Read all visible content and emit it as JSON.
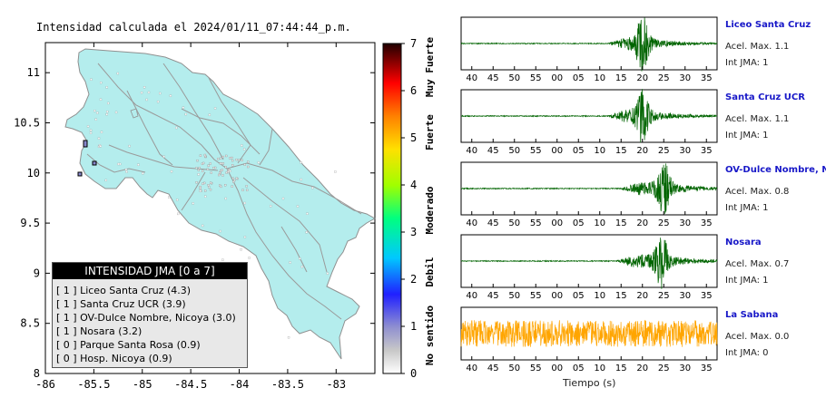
{
  "map": {
    "title": "Intensidad calculada el 2024/01/11_07:44:44_p.m.",
    "x_ticks": [
      "-86",
      "-85.5",
      "-85",
      "-84.5",
      "-84",
      "-83.5",
      "-83"
    ],
    "y_ticks": [
      "11",
      "10.5",
      "10",
      "9.5",
      "9",
      "8.5",
      "8"
    ],
    "xlim": [
      -86,
      -82.6
    ],
    "ylim": [
      8,
      11.3
    ],
    "land_color": "#b4eded"
  },
  "colorbar": {
    "ticks": [
      "0",
      "1",
      "2",
      "3",
      "4",
      "5",
      "6",
      "7"
    ],
    "category_labels": [
      "No sentido",
      "Debil",
      "Moderado",
      "Fuerte",
      "Muy Fuerte"
    ]
  },
  "legend": {
    "title": "INTENSIDAD JMA [0 a 7]",
    "items": [
      {
        "jma": "[ 1 ]",
        "label": "Liceo Santa Cruz (4.3)"
      },
      {
        "jma": "[ 1 ]",
        "label": "Santa Cruz UCR (3.9)"
      },
      {
        "jma": "[ 1 ]",
        "label": "OV-Dulce Nombre, Nicoya (3.0)"
      },
      {
        "jma": "[ 1 ]",
        "label": "Nosara (3.2)"
      },
      {
        "jma": "[ 0 ]",
        "label": "Parque Santa Rosa (0.9)"
      },
      {
        "jma": "[ 0 ]",
        "label": "Hosp. Nicoya (0.9)"
      }
    ]
  },
  "chart_data": {
    "type": "line",
    "xlabel": "Tiempo (s)",
    "x_tick_labels": [
      "40",
      "45",
      "50",
      "55",
      "00",
      "05",
      "10",
      "15",
      "20",
      "25",
      "30",
      "35"
    ],
    "series": [
      {
        "name": "Liceo Santa Cruz",
        "accel_max": "Acel. Max. 1.1",
        "int_jma": "Int JMA: 1",
        "color": "#006400",
        "onset": 12,
        "peak": 20,
        "amp": 1.0,
        "noise": 0.02
      },
      {
        "name": "Santa Cruz UCR",
        "accel_max": "Acel. Max. 1.1",
        "int_jma": "Int JMA: 1",
        "color": "#006400",
        "onset": 12,
        "peak": 20,
        "amp": 1.0,
        "noise": 0.02
      },
      {
        "name": "OV-Dulce Nombre, Nicoya",
        "accel_max": "Acel. Max. 0.8",
        "int_jma": "Int JMA: 1",
        "color": "#006400",
        "onset": 15,
        "peak": 25,
        "amp": 1.0,
        "noise": 0.02
      },
      {
        "name": "Nosara",
        "accel_max": "Acel. Max. 0.7",
        "int_jma": "Int JMA: 1",
        "color": "#006400",
        "onset": 14,
        "peak": 24.5,
        "amp": 1.0,
        "noise": 0.02
      },
      {
        "name": "La Sabana",
        "accel_max": "Acel. Max. 0.0",
        "int_jma": "Int JMA: 0",
        "color": "#ffa500",
        "onset": -1,
        "peak": 0,
        "amp": 0.0,
        "noise": 0.55
      }
    ]
  }
}
